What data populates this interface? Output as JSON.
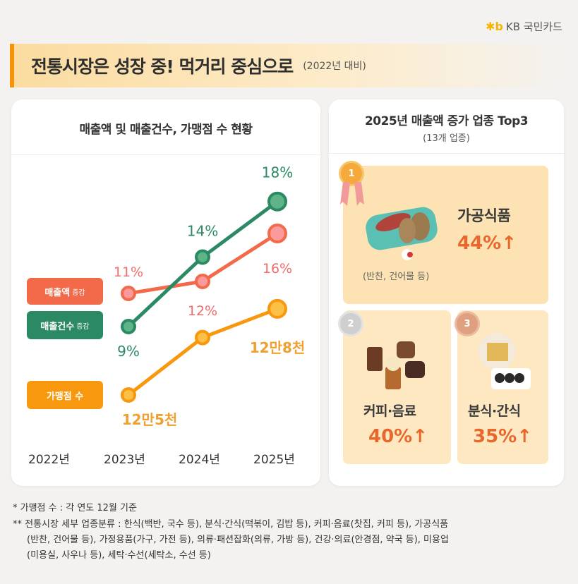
{
  "brand": {
    "logo_mark": "✱b",
    "name": "KB 국민카드"
  },
  "banner": {
    "title": "전통시장은 성장 중! 먹거리 중심으로",
    "subtitle": "(2022년 대비)"
  },
  "left_card": {
    "title": "매출액 및 매출건수, 가맹점 수 현황"
  },
  "legend": {
    "sales_amount": {
      "label": "매출액",
      "suffix": "증감",
      "color": "#f26a4a"
    },
    "sales_count": {
      "label": "매출건수",
      "suffix": "증감",
      "color": "#2b8a63"
    },
    "merchants": {
      "label": "가맹점 수",
      "suffix": "",
      "color": "#f7980f"
    }
  },
  "chart_data": {
    "type": "line",
    "title": "매출액 및 매출건수, 가맹점 수 현황",
    "categories": [
      "2022년",
      "2023년",
      "2024년",
      "2025년"
    ],
    "series": [
      {
        "name": "매출액 증감",
        "x": [
          "2023년",
          "2024년",
          "2025년"
        ],
        "values": [
          11,
          12,
          16
        ],
        "labels": [
          "11%",
          "12%",
          "16%"
        ],
        "unit": "%",
        "color": "#f26a4a"
      },
      {
        "name": "매출건수 증감",
        "x": [
          "2023년",
          "2024년",
          "2025년"
        ],
        "values": [
          9,
          14,
          18
        ],
        "labels": [
          "9%",
          "14%",
          "18%"
        ],
        "unit": "%",
        "color": "#2b8a63"
      },
      {
        "name": "가맹점 수",
        "x": [
          "2023년",
          "2024년",
          "2025년"
        ],
        "values": [
          125000,
          127000,
          128000
        ],
        "labels": [
          "12만5천",
          "",
          "12만8천"
        ],
        "unit": "개",
        "color": "#f7980f"
      }
    ],
    "xlabel": "",
    "ylabel": "",
    "grid": false,
    "legend": "left"
  },
  "right_card": {
    "title": "2025년 매출액 증가 업종 Top3",
    "subtitle": "(13개 업종)",
    "ranks": [
      {
        "rank": "1",
        "name": "가공식품",
        "pct": "44%",
        "arrow": "↑",
        "note": "(반찬, 건어물 등)"
      },
      {
        "rank": "2",
        "name": "커피·음료",
        "pct": "40%",
        "arrow": "↑"
      },
      {
        "rank": "3",
        "name": "분식·간식",
        "pct": "35%",
        "arrow": "↑"
      }
    ]
  },
  "footnotes": [
    "* 가맹점 수 : 각 연도 12월 기준",
    "** 전통시장 세부 업종분류 : 한식(백반, 국수 등), 분식·간식(떡볶이, 김밥 등), 커피·음료(찻집, 커피 등), 가공식품",
    "(반찬, 건어물 등), 가정용품(가구, 가전 등), 의류·패션잡화(의류, 가방 등), 건강·의료(안경점, 약국 등), 미용업",
    "(미용실, 사우나 등), 세탁·수선(세탁소, 수선 등)"
  ]
}
